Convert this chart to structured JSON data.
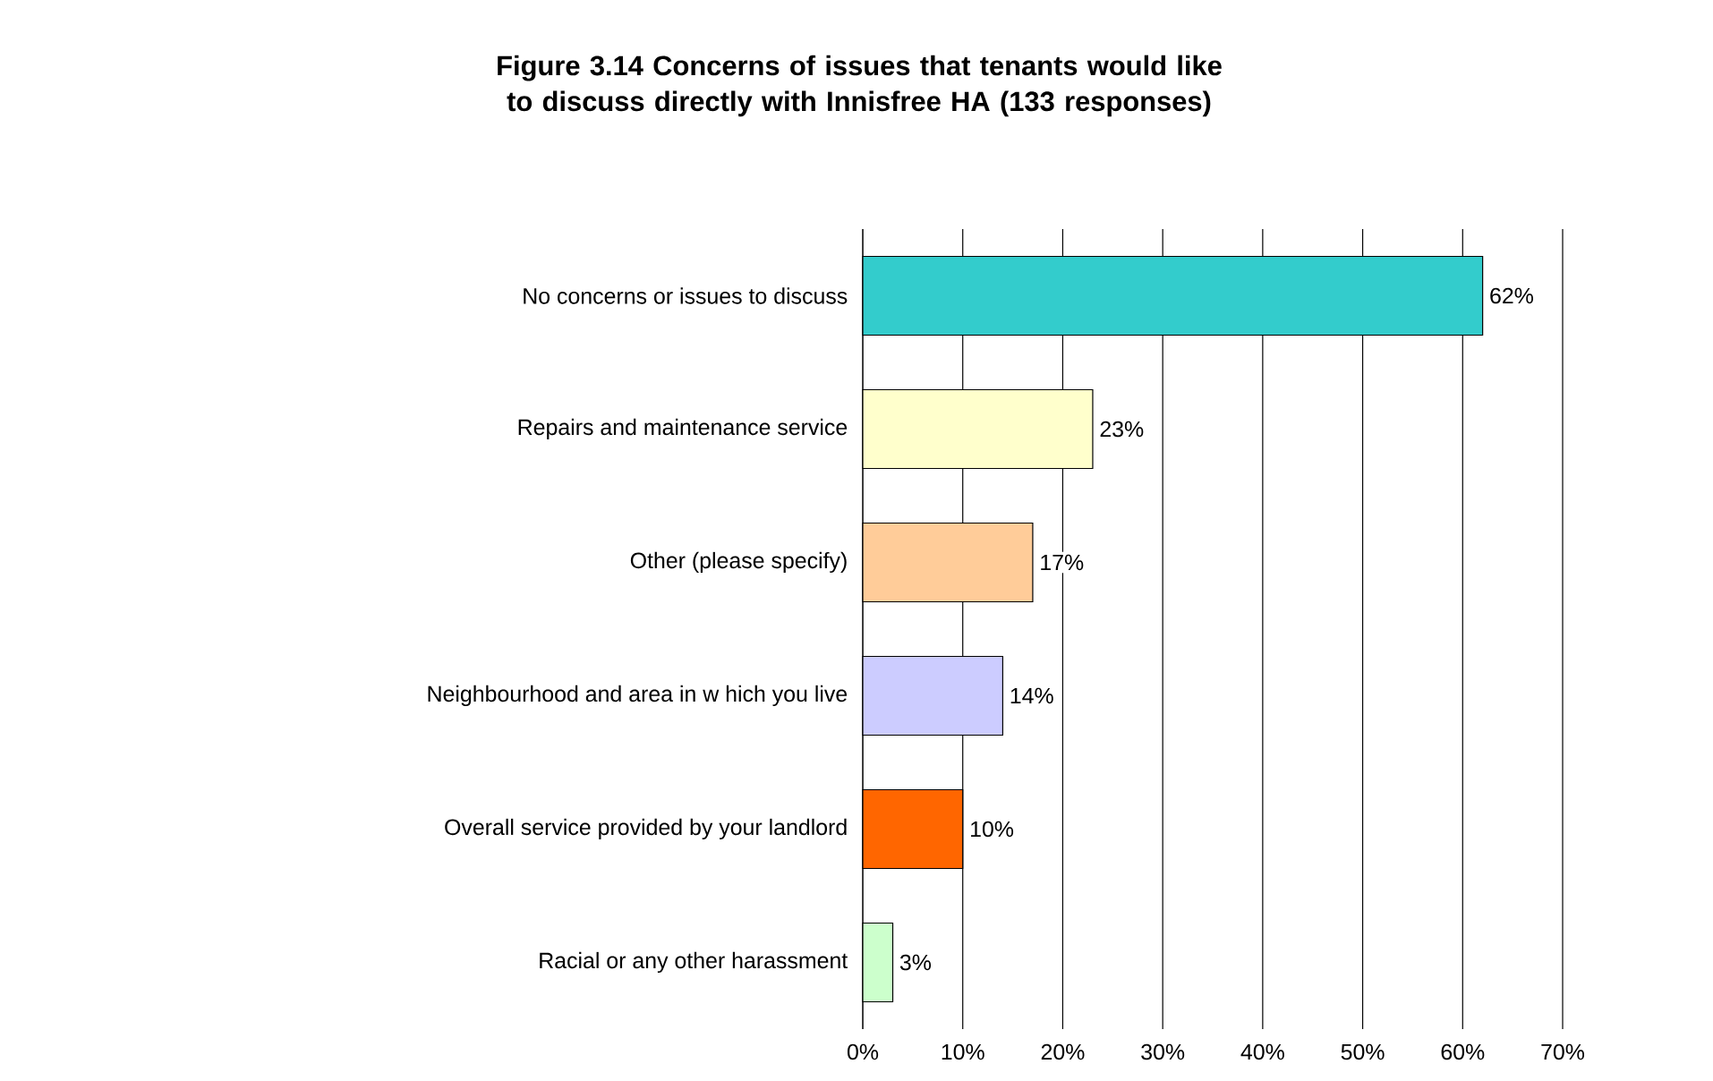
{
  "chart_data": {
    "type": "bar",
    "orientation": "horizontal",
    "title": "Figure 3.14 Concerns of issues that tenants would like to discuss directly with Innisfree HA (133 responses)",
    "categories": [
      "No concerns or issues to discuss",
      "Repairs and maintenance service",
      "Other (please specify)",
      "Neighbourhood and area in w hich you live",
      "Overall service provided by your landlord",
      "Racial or any other harassment"
    ],
    "values": [
      62,
      23,
      17,
      14,
      10,
      3
    ],
    "value_labels": [
      "62%",
      "23%",
      "17%",
      "14%",
      "10%",
      "3%"
    ],
    "colors": [
      "#33cccc",
      "#ffffcc",
      "#ffcc99",
      "#ccccff",
      "#ff6600",
      "#ccffcc"
    ],
    "xlim": [
      0,
      70
    ],
    "xticks": [
      {
        "value": 0,
        "label": "0%"
      },
      {
        "value": 10,
        "label": "10%"
      },
      {
        "value": 20,
        "label": "20%"
      },
      {
        "value": 30,
        "label": "30%"
      },
      {
        "value": 40,
        "label": "40%"
      },
      {
        "value": 50,
        "label": "50%"
      },
      {
        "value": 60,
        "label": "60%"
      },
      {
        "value": 70,
        "label": "70%"
      }
    ],
    "grid": "x"
  }
}
